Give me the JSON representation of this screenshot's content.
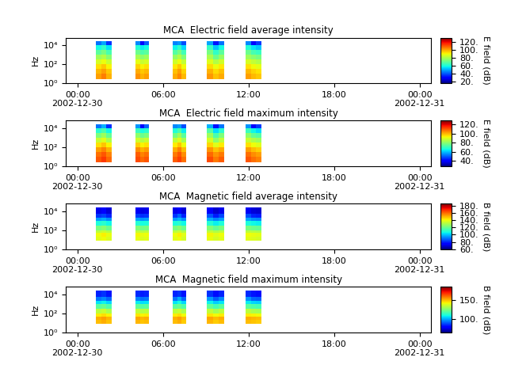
{
  "chart_data": [
    {
      "type": "heatmap",
      "title": "MCA  Electric field average intensity",
      "y_label": "Hz",
      "log": "y",
      "xlim": [
        -0.8,
        24.8
      ],
      "xticks": [
        {
          "value": 0,
          "label": "00:00\n2002-12-30"
        },
        {
          "value": 6,
          "label": "06:00"
        },
        {
          "value": 12,
          "label": "12:00"
        },
        {
          "value": 18,
          "label": "18:00"
        },
        {
          "value": 24,
          "label": "00:00\n2002-12-31"
        }
      ],
      "ylim": [
        1,
        60000
      ],
      "yticks": [
        {
          "value": 1,
          "label": "10⁰"
        },
        {
          "value": 100,
          "label": "10²"
        },
        {
          "value": 10000,
          "label": "10⁴"
        }
      ],
      "x_edges": [
        1.3,
        1.67,
        2.03,
        2.4,
        4.1,
        4.4,
        4.7,
        5.0,
        6.7,
        7.0,
        7.3,
        7.65,
        9.1,
        9.5,
        9.9,
        10.3,
        11.8,
        12.17,
        12.53,
        12.9
      ],
      "y_edges": [
        2.6,
        10,
        30,
        100,
        300,
        1000,
        3000,
        10000,
        25000
      ],
      "cells": [
        [
          100,
          104,
          98,
          null,
          102,
          98,
          100,
          null,
          99,
          103,
          97,
          null,
          101,
          96,
          99,
          null,
          100,
          97,
          95
        ],
        [
          97,
          100,
          95,
          null,
          99,
          95,
          97,
          null,
          96,
          100,
          94,
          null,
          98,
          93,
          96,
          null,
          97,
          94,
          92
        ],
        [
          92,
          95,
          90,
          null,
          94,
          90,
          92,
          null,
          91,
          95,
          89,
          null,
          93,
          88,
          91,
          null,
          92,
          89,
          87
        ],
        [
          85,
          88,
          83,
          null,
          87,
          83,
          85,
          null,
          84,
          88,
          82,
          null,
          86,
          80,
          84,
          null,
          85,
          82,
          80
        ],
        [
          77,
          80,
          74,
          null,
          78,
          75,
          77,
          null,
          76,
          80,
          73,
          null,
          79,
          70,
          76,
          null,
          77,
          74,
          72
        ],
        [
          68,
          72,
          65,
          null,
          70,
          66,
          68,
          null,
          67,
          72,
          64,
          null,
          72,
          62,
          68,
          null,
          70,
          65,
          63
        ],
        [
          58,
          62,
          55,
          null,
          60,
          56,
          58,
          null,
          57,
          62,
          54,
          null,
          63,
          52,
          58,
          null,
          60,
          55,
          52
        ],
        [
          42,
          48,
          35,
          null,
          45,
          30,
          40,
          null,
          44,
          46,
          38,
          null,
          48,
          32,
          42,
          null,
          45,
          30,
          36
        ]
      ],
      "colorbar": {
        "label": "E field (dB)",
        "range": [
          15,
          130
        ],
        "ticks": [
          {
            "value": 20,
            "label": "20."
          },
          {
            "value": 40,
            "label": "40."
          },
          {
            "value": 60,
            "label": "60."
          },
          {
            "value": 80,
            "label": "80."
          },
          {
            "value": 100,
            "label": "100."
          },
          {
            "value": 120,
            "label": "120."
          }
        ]
      }
    },
    {
      "type": "heatmap",
      "title": "MCA  Electric field maximum intensity",
      "y_label": "Hz",
      "log": "y",
      "xlim": [
        -0.8,
        24.8
      ],
      "xticks": [
        {
          "value": 0,
          "label": "00:00\n2002-12-30"
        },
        {
          "value": 6,
          "label": "06:00"
        },
        {
          "value": 12,
          "label": "12:00"
        },
        {
          "value": 18,
          "label": "18:00"
        },
        {
          "value": 24,
          "label": "00:00\n2002-12-31"
        }
      ],
      "ylim": [
        1,
        60000
      ],
      "yticks": [
        {
          "value": 1,
          "label": "10⁰"
        },
        {
          "value": 100,
          "label": "10²"
        },
        {
          "value": 10000,
          "label": "10⁴"
        }
      ],
      "x_edges": [
        1.3,
        1.67,
        2.03,
        2.4,
        4.1,
        4.4,
        4.7,
        5.0,
        6.7,
        7.0,
        7.3,
        7.65,
        9.1,
        9.5,
        9.9,
        10.3,
        11.8,
        12.17,
        12.53,
        12.9
      ],
      "y_edges": [
        2.6,
        10,
        30,
        100,
        300,
        1000,
        3000,
        10000,
        25000
      ],
      "cells": [
        [
          110,
          113,
          108,
          null,
          111,
          108,
          110,
          null,
          109,
          112,
          107,
          null,
          111,
          106,
          109,
          null,
          110,
          107,
          105
        ],
        [
          107,
          110,
          105,
          null,
          109,
          105,
          107,
          null,
          106,
          110,
          104,
          null,
          108,
          103,
          106,
          null,
          107,
          104,
          102
        ],
        [
          102,
          105,
          100,
          null,
          104,
          100,
          102,
          null,
          101,
          105,
          99,
          null,
          103,
          98,
          101,
          null,
          102,
          99,
          97
        ],
        [
          95,
          98,
          93,
          null,
          97,
          93,
          95,
          null,
          94,
          98,
          92,
          null,
          96,
          90,
          94,
          null,
          95,
          92,
          90
        ],
        [
          87,
          90,
          84,
          null,
          88,
          85,
          87,
          null,
          86,
          90,
          83,
          null,
          89,
          80,
          86,
          null,
          87,
          84,
          82
        ],
        [
          78,
          82,
          75,
          null,
          80,
          76,
          78,
          null,
          77,
          82,
          74,
          null,
          82,
          72,
          78,
          null,
          80,
          75,
          73
        ],
        [
          68,
          72,
          65,
          null,
          70,
          66,
          68,
          null,
          67,
          72,
          64,
          null,
          73,
          62,
          68,
          null,
          70,
          65,
          62
        ],
        [
          52,
          58,
          45,
          null,
          55,
          40,
          50,
          null,
          54,
          56,
          48,
          null,
          58,
          42,
          52,
          null,
          55,
          40,
          46
        ]
      ],
      "colorbar": {
        "label": "E field (dB)",
        "range": [
          28,
          128
        ],
        "ticks": [
          {
            "value": 40,
            "label": "40."
          },
          {
            "value": 60,
            "label": "60."
          },
          {
            "value": 80,
            "label": "80."
          },
          {
            "value": 100,
            "label": "100."
          },
          {
            "value": 120,
            "label": "120."
          }
        ]
      }
    },
    {
      "type": "heatmap",
      "title": "MCA  Magnetic field average intensity",
      "y_label": "Hz",
      "log": "y",
      "xlim": [
        -0.8,
        24.8
      ],
      "xticks": [
        {
          "value": 0,
          "label": "00:00\n2002-12-30"
        },
        {
          "value": 6,
          "label": "06:00"
        },
        {
          "value": 12,
          "label": "12:00"
        },
        {
          "value": 18,
          "label": "18:00"
        },
        {
          "value": 24,
          "label": "00:00\n2002-12-31"
        }
      ],
      "ylim": [
        1,
        60000
      ],
      "yticks": [
        {
          "value": 1,
          "label": "10⁰"
        },
        {
          "value": 100,
          "label": "10²"
        },
        {
          "value": 10000,
          "label": "10⁴"
        }
      ],
      "x_edges": [
        1.3,
        1.67,
        2.03,
        2.4,
        4.1,
        4.4,
        4.7,
        5.0,
        6.7,
        7.0,
        7.3,
        7.65,
        9.1,
        9.5,
        9.9,
        10.3,
        11.8,
        12.17,
        12.53,
        12.9
      ],
      "y_edges": [
        8,
        20,
        50,
        100,
        300,
        1000,
        2000,
        5000,
        25000
      ],
      "cells": [
        [
          138,
          140,
          137,
          null,
          139,
          137,
          138,
          null,
          138,
          140,
          136,
          null,
          139,
          136,
          138,
          null,
          138,
          137,
          136
        ],
        [
          140,
          142,
          139,
          null,
          141,
          139,
          140,
          null,
          140,
          142,
          138,
          null,
          141,
          138,
          140,
          null,
          140,
          139,
          138
        ],
        [
          132,
          134,
          131,
          null,
          133,
          131,
          132,
          null,
          132,
          134,
          130,
          null,
          133,
          130,
          132,
          null,
          132,
          131,
          130
        ],
        [
          122,
          124,
          120,
          null,
          123,
          121,
          122,
          null,
          122,
          124,
          120,
          null,
          123,
          119,
          122,
          null,
          122,
          120,
          119
        ],
        [
          108,
          110,
          106,
          null,
          109,
          107,
          108,
          null,
          108,
          110,
          106,
          null,
          109,
          105,
          108,
          null,
          108,
          106,
          105
        ],
        [
          95,
          97,
          93,
          null,
          96,
          94,
          95,
          null,
          95,
          98,
          93,
          null,
          97,
          92,
          95,
          null,
          96,
          93,
          92
        ],
        [
          82,
          84,
          80,
          null,
          83,
          81,
          82,
          null,
          82,
          88,
          80,
          null,
          86,
          79,
          84,
          null,
          85,
          80,
          79
        ],
        [
          72,
          74,
          70,
          null,
          73,
          71,
          72,
          null,
          72,
          74,
          70,
          null,
          74,
          69,
          72,
          null,
          73,
          70,
          69
        ]
      ],
      "colorbar": {
        "label": "B field (dB)",
        "range": [
          60,
          185
        ],
        "ticks": [
          {
            "value": 60,
            "label": "60."
          },
          {
            "value": 80,
            "label": "80."
          },
          {
            "value": 100,
            "label": "100."
          },
          {
            "value": 120,
            "label": "120."
          },
          {
            "value": 140,
            "label": "140."
          },
          {
            "value": 160,
            "label": "160."
          },
          {
            "value": 180,
            "label": "180."
          }
        ]
      }
    },
    {
      "type": "heatmap",
      "title": "MCA  Magnetic field maximum intensity",
      "y_label": "Hz",
      "log": "y",
      "xlim": [
        -0.8,
        24.8
      ],
      "xticks": [
        {
          "value": 0,
          "label": "00:00\n2002-12-30"
        },
        {
          "value": 6,
          "label": "06:00"
        },
        {
          "value": 12,
          "label": "12:00"
        },
        {
          "value": 18,
          "label": "18:00"
        },
        {
          "value": 24,
          "label": "00:00\n2002-12-31"
        }
      ],
      "ylim": [
        1,
        60000
      ],
      "yticks": [
        {
          "value": 1,
          "label": "10⁰"
        },
        {
          "value": 100,
          "label": "10²"
        },
        {
          "value": 10000,
          "label": "10⁴"
        }
      ],
      "x_edges": [
        1.3,
        1.67,
        2.03,
        2.4,
        4.1,
        4.4,
        4.7,
        5.0,
        6.7,
        7.0,
        7.3,
        7.65,
        9.1,
        9.5,
        9.9,
        10.3,
        11.8,
        12.17,
        12.53,
        12.9
      ],
      "y_edges": [
        8,
        20,
        50,
        100,
        300,
        1000,
        2000,
        5000,
        25000
      ],
      "cells": [
        [
          150,
          152,
          149,
          null,
          151,
          149,
          150,
          null,
          150,
          152,
          148,
          null,
          151,
          148,
          150,
          null,
          150,
          149,
          148
        ],
        [
          152,
          154,
          151,
          null,
          153,
          151,
          152,
          null,
          152,
          154,
          150,
          null,
          153,
          150,
          152,
          null,
          152,
          151,
          150
        ],
        [
          144,
          146,
          143,
          null,
          145,
          143,
          144,
          null,
          144,
          146,
          142,
          null,
          145,
          142,
          144,
          null,
          144,
          143,
          142
        ],
        [
          134,
          136,
          132,
          null,
          135,
          133,
          134,
          null,
          134,
          136,
          132,
          null,
          135,
          131,
          134,
          null,
          134,
          132,
          131
        ],
        [
          120,
          122,
          118,
          null,
          121,
          119,
          120,
          null,
          120,
          122,
          118,
          null,
          121,
          117,
          120,
          null,
          120,
          118,
          117
        ],
        [
          107,
          109,
          105,
          null,
          108,
          106,
          107,
          null,
          107,
          110,
          105,
          null,
          109,
          104,
          107,
          null,
          108,
          105,
          104
        ],
        [
          94,
          96,
          92,
          null,
          95,
          93,
          94,
          null,
          94,
          100,
          92,
          null,
          98,
          91,
          96,
          null,
          97,
          92,
          91
        ],
        [
          84,
          86,
          82,
          null,
          85,
          83,
          84,
          null,
          84,
          86,
          82,
          null,
          86,
          81,
          84,
          null,
          85,
          82,
          81
        ]
      ],
      "colorbar": {
        "label": "B field (dB)",
        "range": [
          65,
          185
        ],
        "ticks": [
          {
            "value": 100,
            "label": "100."
          },
          {
            "value": 150,
            "label": "150."
          }
        ]
      }
    }
  ]
}
